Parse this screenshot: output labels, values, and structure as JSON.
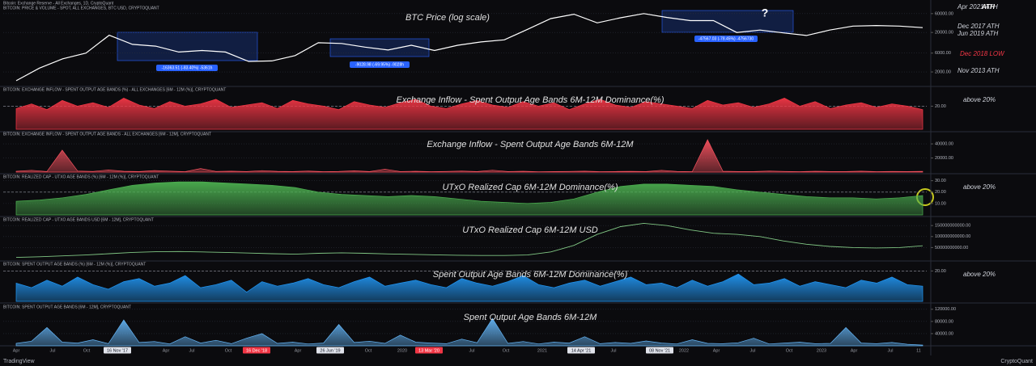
{
  "header": "Bitcoin: Exchange Reserve - All Exchanges, 1D, CryptoQuant",
  "x_labels": [
    "Apr",
    "Jul",
    "Oct",
    "16 Nov '17",
    "Apr",
    "Jul",
    "Oct",
    "16 Dec '18",
    "Apr",
    "26 Jun '19",
    "Oct",
    "2020",
    "13 Mar '20",
    "Jul",
    "Oct",
    "2021",
    "14 Apr '21",
    "Jul",
    "08 Nov '21",
    "2022",
    "Apr",
    "Jul",
    "Oct",
    "2023",
    "Apr",
    "Jul",
    "11"
  ],
  "footer": {
    "left": "TradingView",
    "right": "CryptoQuant"
  },
  "annotations": {
    "apr2021": "Apr 2021 ATH",
    "ath": "ATH",
    "dec2017": "Dec 2017 ATH",
    "jun2019": "Jun 2019 ATH",
    "dec2018": "Dec 2018 LOW",
    "nov2013": "Nov 2013 ATH",
    "question": "?",
    "box1": "-16363.51 (-83.40%) -5361h",
    "box2": "-9028.98 (-69.95%) -9028h",
    "box3": "-47567.03 (-78.45%) -4756730"
  },
  "chart_data": [
    {
      "type": "line",
      "title": "BTC Price (log scale)",
      "header": "BITCOIN: PRICE & VOLUME - SPOT, ALL EXCHANGES, BTC USD, CRYPTOQUANT",
      "color": "#ffffff",
      "log_scale": true,
      "grid": true,
      "values": [
        1200,
        2500,
        4300,
        6000,
        17000,
        10000,
        9000,
        6400,
        7000,
        6400,
        3700,
        3800,
        5200,
        11000,
        10500,
        8500,
        7200,
        9500,
        7000,
        9500,
        11500,
        13000,
        24000,
        45000,
        58000,
        35000,
        47000,
        60000,
        48000,
        40000,
        40000,
        20000,
        23000,
        19500,
        16800,
        23000,
        29000,
        30000,
        29000,
        26500
      ],
      "ylim": [
        900,
        100000
      ],
      "yticks": [
        {
          "value": 60000,
          "label": "60000.00"
        },
        {
          "value": 20000,
          "label": "20000.00"
        },
        {
          "value": 6000,
          "label": "6000.00"
        },
        {
          "value": 2000,
          "label": "2000.00"
        }
      ]
    },
    {
      "type": "area",
      "title": "Exchange Inflow - Spent Output Age Bands 6M-12M Dominance(%)",
      "header": "BITCOIN: EXCHANGE INFLOW - SPENT OUTPUT AGE BANDS (%) - ALL EXCHANGES [6M - 12M (%)], CRYPTOQUANT",
      "color": "#f23645",
      "note": "above 20%",
      "threshold": 20,
      "grid": true,
      "values": [
        18,
        22,
        17,
        25,
        20,
        23,
        19,
        27,
        21,
        18,
        24,
        20,
        22,
        26,
        19,
        21,
        23,
        18,
        25,
        22,
        20,
        17,
        24,
        21,
        19,
        23,
        26,
        20,
        18,
        22,
        25,
        21,
        19,
        24,
        20,
        23,
        17,
        22,
        26,
        21,
        19,
        24,
        22,
        20,
        18,
        25,
        21,
        23,
        19,
        22,
        27,
        20,
        24,
        18,
        21,
        23,
        19,
        22,
        20,
        17
      ],
      "ylim": [
        0,
        35
      ],
      "yticks": [
        {
          "value": 20,
          "label": "20.00"
        }
      ]
    },
    {
      "type": "area",
      "title": "Exchange Inflow - Spent Output Age Bands 6M-12M",
      "header": "BITCOIN: EXCHANGE INFLOW - SPENT OUTPUT AGE BANDS - ALL EXCHANGES [6M - 12M], CRYPTOQUANT",
      "color": "#f7525f",
      "grid": true,
      "values": [
        1200,
        2500,
        800,
        31000,
        1500,
        900,
        3000,
        1100,
        700,
        2200,
        1400,
        600,
        5000,
        900,
        1300,
        800,
        2100,
        1000,
        700,
        1500,
        600,
        900,
        1800,
        700,
        4000,
        800,
        1200,
        600,
        900,
        1500,
        700,
        2600,
        800,
        1100,
        500,
        700,
        900,
        1300,
        600,
        800,
        1000,
        700,
        2400,
        900,
        600,
        46000,
        1200,
        800,
        700,
        1500,
        900,
        600,
        1100,
        800,
        700,
        1300,
        600,
        900,
        700,
        1000
      ],
      "ylim": [
        0,
        55000
      ],
      "yticks": [
        {
          "value": 20000,
          "label": "20000.00"
        },
        {
          "value": 40000,
          "label": "40000.00"
        }
      ]
    },
    {
      "type": "area",
      "title": "UTxO Realized Cap 6M-12M Dominance(%)",
      "header": "BITCOIN: REALIZED CAP - UTXO AGE BANDS (%) [6M - 12M (%)], CRYPTOQUANT",
      "color": "#4caf50",
      "note": "above 20%",
      "threshold": 20,
      "grid": true,
      "values": [
        12,
        13,
        15,
        18,
        22,
        26,
        28,
        29,
        29,
        28,
        27,
        26,
        24,
        20,
        18,
        17,
        16,
        17,
        16,
        14,
        12,
        11,
        10,
        11,
        14,
        20,
        25,
        27,
        27,
        26,
        25,
        22,
        20,
        18,
        16,
        15,
        15,
        14,
        15,
        17
      ],
      "ylim": [
        0,
        34
      ],
      "yticks": [
        {
          "value": 10,
          "label": "10.00"
        },
        {
          "value": 20,
          "label": "20.00"
        },
        {
          "value": 30,
          "label": "30.00"
        }
      ]
    },
    {
      "type": "line",
      "title": "UTxO Realized Cap 6M-12M USD",
      "header": "BITCOIN: REALIZED CAP - UTXO AGE BANDS USD [6M - 12M], CRYPTOQUANT",
      "color": "#81c784",
      "grid": true,
      "values": [
        5000000000,
        8000000000,
        12000000000,
        16000000000,
        22000000000,
        28000000000,
        31000000000,
        32000000000,
        30000000000,
        28000000000,
        25000000000,
        22000000000,
        20000000000,
        24000000000,
        26000000000,
        24000000000,
        21000000000,
        19000000000,
        17000000000,
        15000000000,
        14000000000,
        14000000000,
        16000000000,
        30000000000,
        60000000000,
        110000000000,
        145000000000,
        160000000000,
        150000000000,
        130000000000,
        115000000000,
        110000000000,
        100000000000,
        80000000000,
        65000000000,
        55000000000,
        50000000000,
        48000000000,
        50000000000,
        58000000000
      ],
      "ylim": [
        0,
        180000000000
      ],
      "yticks": [
        {
          "value": 50000000000,
          "label": "50000000000.00"
        },
        {
          "value": 100000000000,
          "label": "100000000000.00"
        },
        {
          "value": 150000000000,
          "label": "150000000000.00"
        }
      ]
    },
    {
      "type": "area",
      "title": "Spent Output Age Bands 6M-12M Dominance(%)",
      "header": "BITCOIN: SPENT OUTPUT AGE BANDS (%) [6M - 12M (%)], CRYPTOQUANT",
      "color": "#2196f3",
      "note": "above 20%",
      "threshold": 20,
      "grid": true,
      "values": [
        12,
        9,
        14,
        10,
        16,
        11,
        8,
        13,
        15,
        10,
        12,
        17,
        9,
        11,
        14,
        6,
        13,
        10,
        12,
        15,
        11,
        9,
        13,
        16,
        10,
        12,
        14,
        11,
        9,
        15,
        12,
        10,
        13,
        17,
        11,
        9,
        12,
        14,
        10,
        13,
        16,
        11,
        12,
        9,
        14,
        10,
        13,
        18,
        11,
        12,
        15,
        10,
        13,
        11,
        9,
        14,
        12,
        16,
        11,
        10
      ],
      "ylim": [
        0,
        25
      ],
      "yticks": [
        {
          "value": 20,
          "label": "20.00"
        }
      ]
    },
    {
      "type": "area",
      "title": "Spent Output Age Bands 6M-12M",
      "header": "BITCOIN: SPENT OUTPUT AGE BANDS [6M - 12M], CRYPTOQUANT",
      "color": "#64b5f6",
      "grid": true,
      "values": [
        8000,
        15000,
        60000,
        12000,
        9000,
        20000,
        7000,
        85000,
        11000,
        14000,
        6000,
        30000,
        9000,
        18000,
        7000,
        25000,
        40000,
        8000,
        12000,
        6000,
        9000,
        70000,
        11000,
        15000,
        8000,
        35000,
        12000,
        9000,
        7000,
        22000,
        10000,
        90000,
        8000,
        14000,
        6000,
        12000,
        9000,
        30000,
        7000,
        11000,
        8000,
        16000,
        9000,
        6000,
        20000,
        8000,
        7000,
        10000,
        25000,
        6000,
        9000,
        12000,
        7000,
        8000,
        60000,
        9000,
        7000,
        11000,
        5000,
        2273.53
      ],
      "ylim": [
        0,
        130000
      ],
      "yticks": [
        {
          "value": 40000,
          "label": "40000.00"
        },
        {
          "value": 80000,
          "label": "80000.00"
        },
        {
          "value": 120000,
          "label": "120000.00"
        }
      ]
    }
  ]
}
